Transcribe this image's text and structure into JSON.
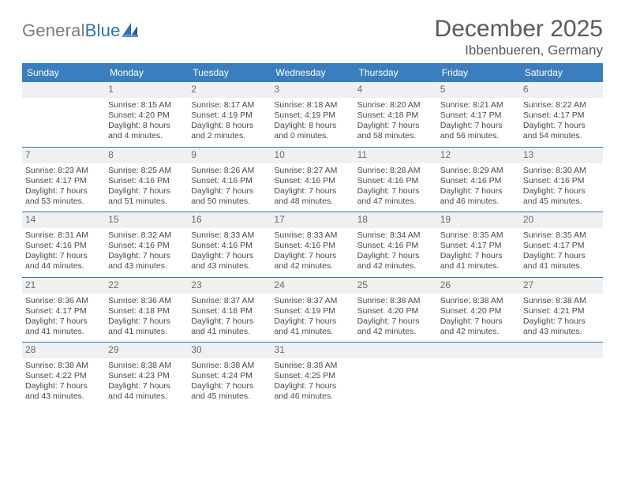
{
  "brand": {
    "gray": "General",
    "blue": "Blue"
  },
  "title": "December 2025",
  "location": "Ibbenbueren, Germany",
  "colors": {
    "header_bg": "#3a7ebf",
    "header_text": "#ffffff",
    "rule": "#2f72b8",
    "daynum_bg": "#eef0f1",
    "text": "#4a4a4a",
    "title_color": "#5a5a5a"
  },
  "dayNames": [
    "Sunday",
    "Monday",
    "Tuesday",
    "Wednesday",
    "Thursday",
    "Friday",
    "Saturday"
  ],
  "weeks": [
    [
      {
        "n": "",
        "lines": []
      },
      {
        "n": "1",
        "lines": [
          "Sunrise: 8:15 AM",
          "Sunset: 4:20 PM",
          "Daylight: 8 hours and 4 minutes."
        ]
      },
      {
        "n": "2",
        "lines": [
          "Sunrise: 8:17 AM",
          "Sunset: 4:19 PM",
          "Daylight: 8 hours and 2 minutes."
        ]
      },
      {
        "n": "3",
        "lines": [
          "Sunrise: 8:18 AM",
          "Sunset: 4:19 PM",
          "Daylight: 8 hours and 0 minutes."
        ]
      },
      {
        "n": "4",
        "lines": [
          "Sunrise: 8:20 AM",
          "Sunset: 4:18 PM",
          "Daylight: 7 hours and 58 minutes."
        ]
      },
      {
        "n": "5",
        "lines": [
          "Sunrise: 8:21 AM",
          "Sunset: 4:17 PM",
          "Daylight: 7 hours and 56 minutes."
        ]
      },
      {
        "n": "6",
        "lines": [
          "Sunrise: 8:22 AM",
          "Sunset: 4:17 PM",
          "Daylight: 7 hours and 54 minutes."
        ]
      }
    ],
    [
      {
        "n": "7",
        "lines": [
          "Sunrise: 8:23 AM",
          "Sunset: 4:17 PM",
          "Daylight: 7 hours and 53 minutes."
        ]
      },
      {
        "n": "8",
        "lines": [
          "Sunrise: 8:25 AM",
          "Sunset: 4:16 PM",
          "Daylight: 7 hours and 51 minutes."
        ]
      },
      {
        "n": "9",
        "lines": [
          "Sunrise: 8:26 AM",
          "Sunset: 4:16 PM",
          "Daylight: 7 hours and 50 minutes."
        ]
      },
      {
        "n": "10",
        "lines": [
          "Sunrise: 8:27 AM",
          "Sunset: 4:16 PM",
          "Daylight: 7 hours and 48 minutes."
        ]
      },
      {
        "n": "11",
        "lines": [
          "Sunrise: 8:28 AM",
          "Sunset: 4:16 PM",
          "Daylight: 7 hours and 47 minutes."
        ]
      },
      {
        "n": "12",
        "lines": [
          "Sunrise: 8:29 AM",
          "Sunset: 4:16 PM",
          "Daylight: 7 hours and 46 minutes."
        ]
      },
      {
        "n": "13",
        "lines": [
          "Sunrise: 8:30 AM",
          "Sunset: 4:16 PM",
          "Daylight: 7 hours and 45 minutes."
        ]
      }
    ],
    [
      {
        "n": "14",
        "lines": [
          "Sunrise: 8:31 AM",
          "Sunset: 4:16 PM",
          "Daylight: 7 hours and 44 minutes."
        ]
      },
      {
        "n": "15",
        "lines": [
          "Sunrise: 8:32 AM",
          "Sunset: 4:16 PM",
          "Daylight: 7 hours and 43 minutes."
        ]
      },
      {
        "n": "16",
        "lines": [
          "Sunrise: 8:33 AM",
          "Sunset: 4:16 PM",
          "Daylight: 7 hours and 43 minutes."
        ]
      },
      {
        "n": "17",
        "lines": [
          "Sunrise: 8:33 AM",
          "Sunset: 4:16 PM",
          "Daylight: 7 hours and 42 minutes."
        ]
      },
      {
        "n": "18",
        "lines": [
          "Sunrise: 8:34 AM",
          "Sunset: 4:16 PM",
          "Daylight: 7 hours and 42 minutes."
        ]
      },
      {
        "n": "19",
        "lines": [
          "Sunrise: 8:35 AM",
          "Sunset: 4:17 PM",
          "Daylight: 7 hours and 41 minutes."
        ]
      },
      {
        "n": "20",
        "lines": [
          "Sunrise: 8:35 AM",
          "Sunset: 4:17 PM",
          "Daylight: 7 hours and 41 minutes."
        ]
      }
    ],
    [
      {
        "n": "21",
        "lines": [
          "Sunrise: 8:36 AM",
          "Sunset: 4:17 PM",
          "Daylight: 7 hours and 41 minutes."
        ]
      },
      {
        "n": "22",
        "lines": [
          "Sunrise: 8:36 AM",
          "Sunset: 4:18 PM",
          "Daylight: 7 hours and 41 minutes."
        ]
      },
      {
        "n": "23",
        "lines": [
          "Sunrise: 8:37 AM",
          "Sunset: 4:18 PM",
          "Daylight: 7 hours and 41 minutes."
        ]
      },
      {
        "n": "24",
        "lines": [
          "Sunrise: 8:37 AM",
          "Sunset: 4:19 PM",
          "Daylight: 7 hours and 41 minutes."
        ]
      },
      {
        "n": "25",
        "lines": [
          "Sunrise: 8:38 AM",
          "Sunset: 4:20 PM",
          "Daylight: 7 hours and 42 minutes."
        ]
      },
      {
        "n": "26",
        "lines": [
          "Sunrise: 8:38 AM",
          "Sunset: 4:20 PM",
          "Daylight: 7 hours and 42 minutes."
        ]
      },
      {
        "n": "27",
        "lines": [
          "Sunrise: 8:38 AM",
          "Sunset: 4:21 PM",
          "Daylight: 7 hours and 43 minutes."
        ]
      }
    ],
    [
      {
        "n": "28",
        "lines": [
          "Sunrise: 8:38 AM",
          "Sunset: 4:22 PM",
          "Daylight: 7 hours and 43 minutes."
        ]
      },
      {
        "n": "29",
        "lines": [
          "Sunrise: 8:38 AM",
          "Sunset: 4:23 PM",
          "Daylight: 7 hours and 44 minutes."
        ]
      },
      {
        "n": "30",
        "lines": [
          "Sunrise: 8:38 AM",
          "Sunset: 4:24 PM",
          "Daylight: 7 hours and 45 minutes."
        ]
      },
      {
        "n": "31",
        "lines": [
          "Sunrise: 8:38 AM",
          "Sunset: 4:25 PM",
          "Daylight: 7 hours and 46 minutes."
        ]
      },
      {
        "n": "",
        "lines": []
      },
      {
        "n": "",
        "lines": []
      },
      {
        "n": "",
        "lines": []
      }
    ]
  ]
}
